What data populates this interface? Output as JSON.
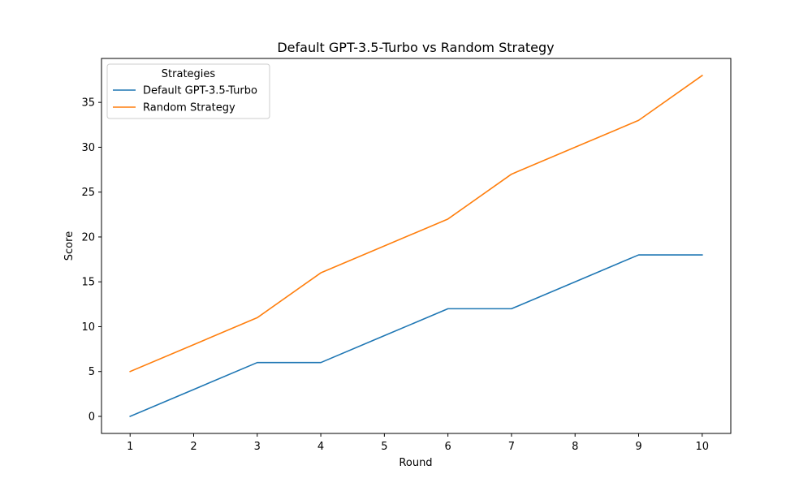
{
  "chart_data": {
    "type": "line",
    "title": "Default GPT-3.5-Turbo vs Random Strategy",
    "xlabel": "Round",
    "ylabel": "Score",
    "x": [
      1,
      2,
      3,
      4,
      5,
      6,
      7,
      8,
      9,
      10
    ],
    "xlim": [
      0.55,
      10.45
    ],
    "ylim": [
      -1.9,
      39.9
    ],
    "xticks": [
      1,
      2,
      3,
      4,
      5,
      6,
      7,
      8,
      9,
      10
    ],
    "yticks": [
      0,
      5,
      10,
      15,
      20,
      25,
      30,
      35
    ],
    "grid": false,
    "legend": {
      "title": "Strategies",
      "placement": "top-left"
    },
    "series": [
      {
        "name": "Default GPT-3.5-Turbo",
        "color": "#1f77b4",
        "values": [
          0,
          3,
          6,
          6,
          9,
          12,
          12,
          15,
          18,
          18
        ]
      },
      {
        "name": "Random Strategy",
        "color": "#ff7f0e",
        "values": [
          5,
          8,
          11,
          16,
          19,
          22,
          27,
          30,
          33,
          38
        ]
      }
    ]
  }
}
